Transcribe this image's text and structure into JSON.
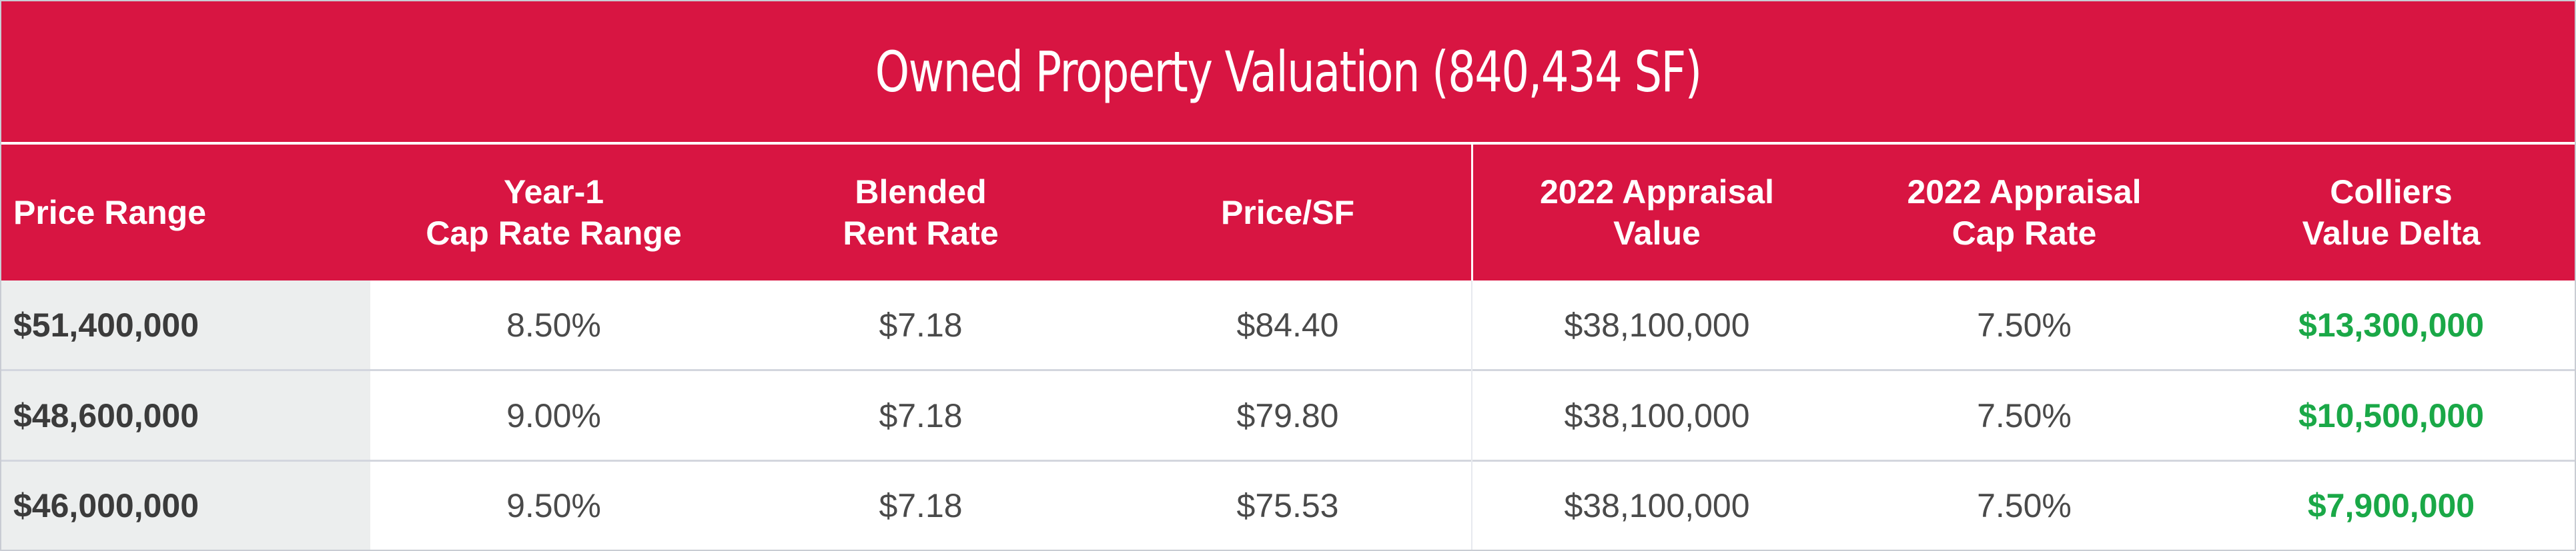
{
  "title": "Owned Property Valuation (840,434 SF)",
  "columns": [
    "Price Range",
    "Year-1\nCap Rate Range",
    "Blended\nRent Rate",
    "Price/SF",
    "2022 Appraisal\nValue",
    "2022 Appraisal\nCap Rate",
    "Colliers\nValue Delta"
  ],
  "rows": [
    {
      "price_range": "$51,400,000",
      "cap_rate_range": "8.50%",
      "rent_rate": "$7.18",
      "price_sf": "$84.40",
      "appraisal_value": "$38,100,000",
      "appraisal_cap_rate": "7.50%",
      "value_delta": "$13,300,000"
    },
    {
      "price_range": "$48,600,000",
      "cap_rate_range": "9.00%",
      "rent_rate": "$7.18",
      "price_sf": "$79.80",
      "appraisal_value": "$38,100,000",
      "appraisal_cap_rate": "7.50%",
      "value_delta": "$10,500,000"
    },
    {
      "price_range": "$46,000,000",
      "cap_rate_range": "9.50%",
      "rent_rate": "$7.18",
      "price_sf": "$75.53",
      "appraisal_value": "$38,100,000",
      "appraisal_cap_rate": "7.50%",
      "value_delta": "$7,900,000"
    }
  ],
  "colors": {
    "header_bg": "#d81542",
    "delta_positive": "#1aa847",
    "first_col_bg": "#eceeee"
  }
}
